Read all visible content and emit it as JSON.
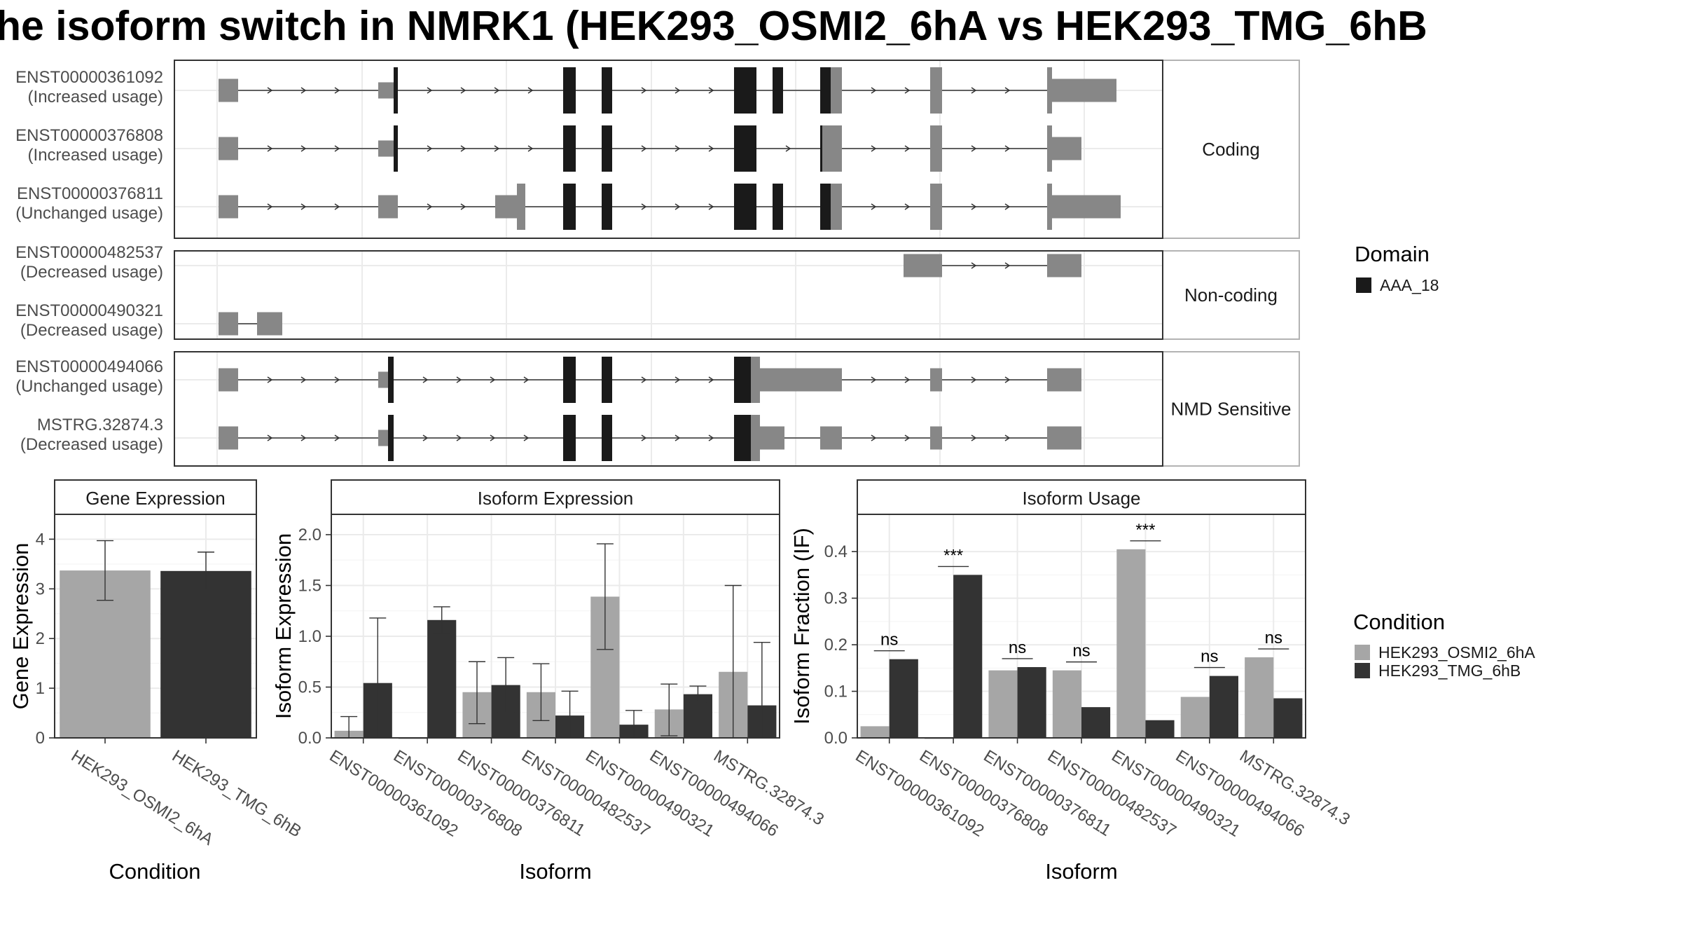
{
  "title": "he isoform switch in NMRK1 (HEK293_OSMI2_6hA vs HEK293_TMG_6hB",
  "colors": {
    "exon": "#878787",
    "domain": "#1a1a1a",
    "condA": "#a6a6a6",
    "condB": "#333333",
    "grid": "#ebebeb",
    "panelBorder": "#333333",
    "stripBorder": "#b3b3b3"
  },
  "structure": {
    "facets": [
      {
        "label": "Coding",
        "transcripts": [
          {
            "id": "ENST00000361092",
            "usage": "(Increased usage)"
          },
          {
            "id": "ENST00000376808",
            "usage": "(Increased usage)"
          },
          {
            "id": "ENST00000376811",
            "usage": "(Unchanged usage)"
          }
        ]
      },
      {
        "label": "Non-coding",
        "transcripts": [
          {
            "id": "ENST00000482537",
            "usage": "(Decreased usage)"
          },
          {
            "id": "ENST00000490321",
            "usage": "(Decreased usage)"
          }
        ]
      },
      {
        "label": "NMD Sensitive",
        "transcripts": [
          {
            "id": "ENST00000494066",
            "usage": "(Unchanged usage)"
          },
          {
            "id": "MSTRG.32874.3",
            "usage": "(Decreased usage)"
          }
        ]
      }
    ],
    "domain_legend": {
      "title": "Domain",
      "items": [
        "AAA_18"
      ]
    }
  },
  "chart_data": [
    {
      "type": "bar",
      "title": "Gene Expression",
      "xlabel": "Condition",
      "ylabel": "Gene Expression",
      "ylim": [
        0,
        4.5
      ],
      "yticks": [
        0,
        1,
        2,
        3,
        4
      ],
      "categories": [
        "HEK293_OSMI2_6hA",
        "HEK293_TMG_6hB"
      ],
      "values": [
        3.37,
        3.36
      ],
      "error_low": [
        2.77,
        2.98
      ],
      "error_high": [
        3.97,
        3.74
      ]
    },
    {
      "type": "bar",
      "title": "Isoform Expression",
      "xlabel": "Isoform",
      "ylabel": "Isoform Expression",
      "ylim": [
        0,
        2.2
      ],
      "yticks": [
        "0.0",
        "0.5",
        "1.0",
        "1.5",
        "2.0"
      ],
      "categories": [
        "ENST00000361092",
        "ENST00000376808",
        "ENST00000376811",
        "ENST00000482537",
        "ENST00000490321",
        "ENST00000494066",
        "MSTRG.32874.3"
      ],
      "series": [
        {
          "name": "HEK293_OSMI2_6hA",
          "values": [
            0.07,
            0.0,
            0.45,
            0.45,
            1.39,
            0.28,
            0.65
          ],
          "error_low": [
            0.0,
            0.0,
            0.14,
            0.17,
            0.87,
            0.02,
            0.0
          ],
          "error_high": [
            0.21,
            0.0,
            0.75,
            0.73,
            1.91,
            0.53,
            1.5
          ]
        },
        {
          "name": "HEK293_TMG_6hB",
          "values": [
            0.54,
            1.16,
            0.52,
            0.22,
            0.13,
            0.43,
            0.32
          ],
          "error_low": [
            0.0,
            1.03,
            0.25,
            0.0,
            0.0,
            0.35,
            0.0
          ],
          "error_high": [
            1.18,
            1.29,
            0.79,
            0.46,
            0.27,
            0.51,
            0.94
          ]
        }
      ]
    },
    {
      "type": "bar",
      "title": "Isoform Usage",
      "xlabel": "Isoform",
      "ylabel": "Isoform Fraction (IF)",
      "ylim": [
        0,
        0.48
      ],
      "yticks": [
        "0.0",
        "0.1",
        "0.2",
        "0.3",
        "0.4"
      ],
      "categories": [
        "ENST00000361092",
        "ENST00000376808",
        "ENST00000376811",
        "ENST00000482537",
        "ENST00000490321",
        "ENST00000494066",
        "MSTRG.32874.3"
      ],
      "series": [
        {
          "name": "HEK293_OSMI2_6hA",
          "values": [
            0.025,
            0.0,
            0.145,
            0.145,
            0.405,
            0.088,
            0.173
          ]
        },
        {
          "name": "HEK293_TMG_6hB",
          "values": [
            0.169,
            0.35,
            0.152,
            0.066,
            0.038,
            0.133,
            0.085
          ]
        }
      ],
      "significance": [
        "ns",
        "***",
        "ns",
        "ns",
        "***",
        "ns",
        "ns"
      ]
    }
  ],
  "condition_legend": {
    "title": "Condition",
    "items": [
      "HEK293_OSMI2_6hA",
      "HEK293_TMG_6hB"
    ]
  }
}
